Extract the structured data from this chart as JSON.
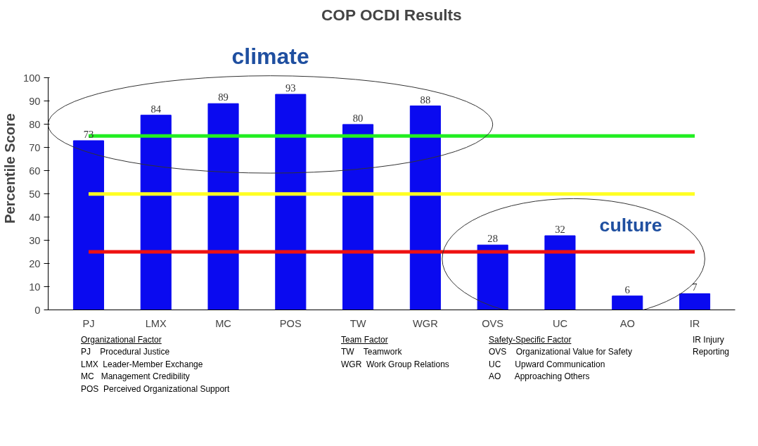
{
  "chart_data": {
    "type": "bar",
    "title": "COP OCDI Results",
    "ylabel": "Percentile Score",
    "categories": [
      "PJ",
      "LMX",
      "MC",
      "POS",
      "TW",
      "WGR",
      "OVS",
      "UC",
      "AO",
      "IR"
    ],
    "values": [
      73,
      84,
      89,
      93,
      80,
      88,
      28,
      32,
      6,
      7
    ],
    "color": "#0a0af0",
    "ylim": [
      0,
      100
    ],
    "yticks": [
      0,
      10,
      20,
      30,
      40,
      50,
      60,
      70,
      80,
      90,
      100
    ],
    "grid": false,
    "data_labels": true,
    "ref_lines": [
      {
        "axis": "y",
        "value": 75,
        "color": "#22ee22"
      },
      {
        "axis": "y",
        "value": 50,
        "color": "#ffff22"
      },
      {
        "axis": "y",
        "value": 25,
        "color": "#ee1111"
      }
    ],
    "annotations": [
      "climate",
      "culture",
      "Organizational Factor",
      "PJ    Procedural Justice",
      "LMX  Leader-Member Exchange",
      "MC   Management Credibility",
      "POS  Perceived Organizational Support",
      "Team Factor",
      "TW    Teamwork",
      "WGR  Work Group Relations",
      "Safety-Specific Factor",
      "OVS    Organizational Value for Safety",
      "UC      Upward Communication",
      "AO      Approaching Others",
      "IR Injury Reporting"
    ]
  }
}
